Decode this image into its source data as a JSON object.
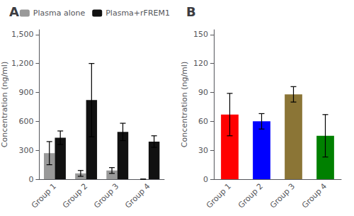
{
  "chart_data": [
    {
      "type": "bar",
      "title": "A",
      "categories": [
        "Group 1",
        "Group 2",
        "Group 3",
        "Group 4"
      ],
      "series": [
        {
          "name": "Plasma alone",
          "color": "#999999",
          "values": [
            270,
            60,
            90,
            0
          ],
          "errors": [
            120,
            30,
            30,
            0
          ]
        },
        {
          "name": "Plasma+rFREM1",
          "color": "#111111",
          "values": [
            430,
            820,
            490,
            390
          ],
          "errors": [
            70,
            380,
            90,
            60
          ]
        }
      ],
      "ylabel": "Concentration (ng/ml)",
      "ylim": [
        0,
        1550
      ],
      "yticks": [
        0,
        300,
        600,
        900,
        1200,
        1500
      ],
      "grid": false,
      "legend": "upper right"
    },
    {
      "type": "bar",
      "title": "B",
      "categories": [
        "Group 1",
        "Group 2",
        "Group 3",
        "Group 4"
      ],
      "values": [
        67,
        60,
        88,
        45
      ],
      "errors": [
        22,
        8,
        8,
        22
      ],
      "colors": [
        "#ff0000",
        "#0000ff",
        "#8b7536",
        "#008000"
      ],
      "ylabel": "Concentration (ng/ml)",
      "ylim": [
        0,
        155
      ],
      "yticks": [
        0,
        30,
        60,
        90,
        120,
        150
      ],
      "grid": false
    }
  ]
}
